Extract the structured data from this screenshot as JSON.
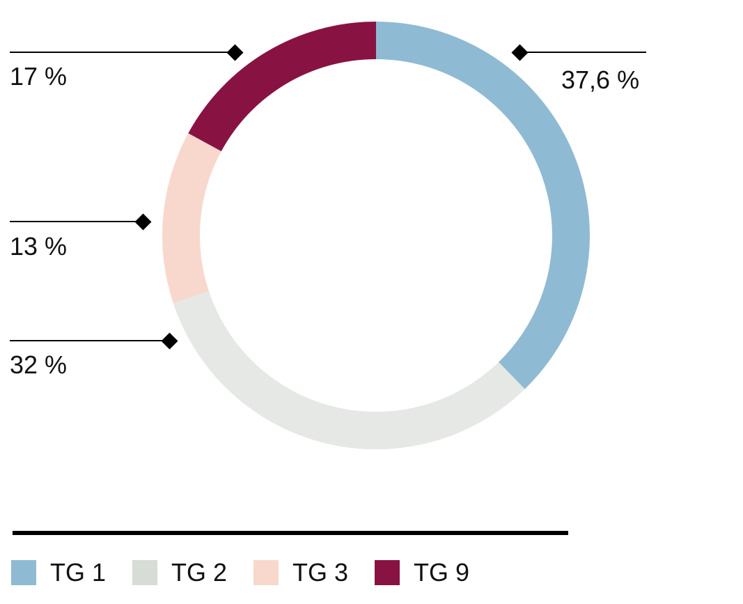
{
  "chart_data": {
    "type": "pie",
    "variant": "donut",
    "title": "",
    "series": [
      {
        "name": "TG 1",
        "value": 37.6,
        "label": "37,6 %",
        "color": "#8fbad3"
      },
      {
        "name": "TG 2",
        "value": 32,
        "label": "32 %",
        "color": "#e5e8e4"
      },
      {
        "name": "TG 3",
        "value": 13,
        "label": "13 %",
        "color": "#f8d8cd"
      },
      {
        "name": "TG 9",
        "value": 17,
        "label": "17 %",
        "color": "#881343"
      }
    ],
    "legend": {
      "placement": "bottom",
      "items": [
        {
          "label": "TG 1",
          "color": "#8fbad3"
        },
        {
          "label": "TG 2",
          "color": "#d7dcd6"
        },
        {
          "label": "TG 3",
          "color": "#f8d8cd"
        },
        {
          "label": "TG 9",
          "color": "#881343"
        }
      ]
    }
  }
}
